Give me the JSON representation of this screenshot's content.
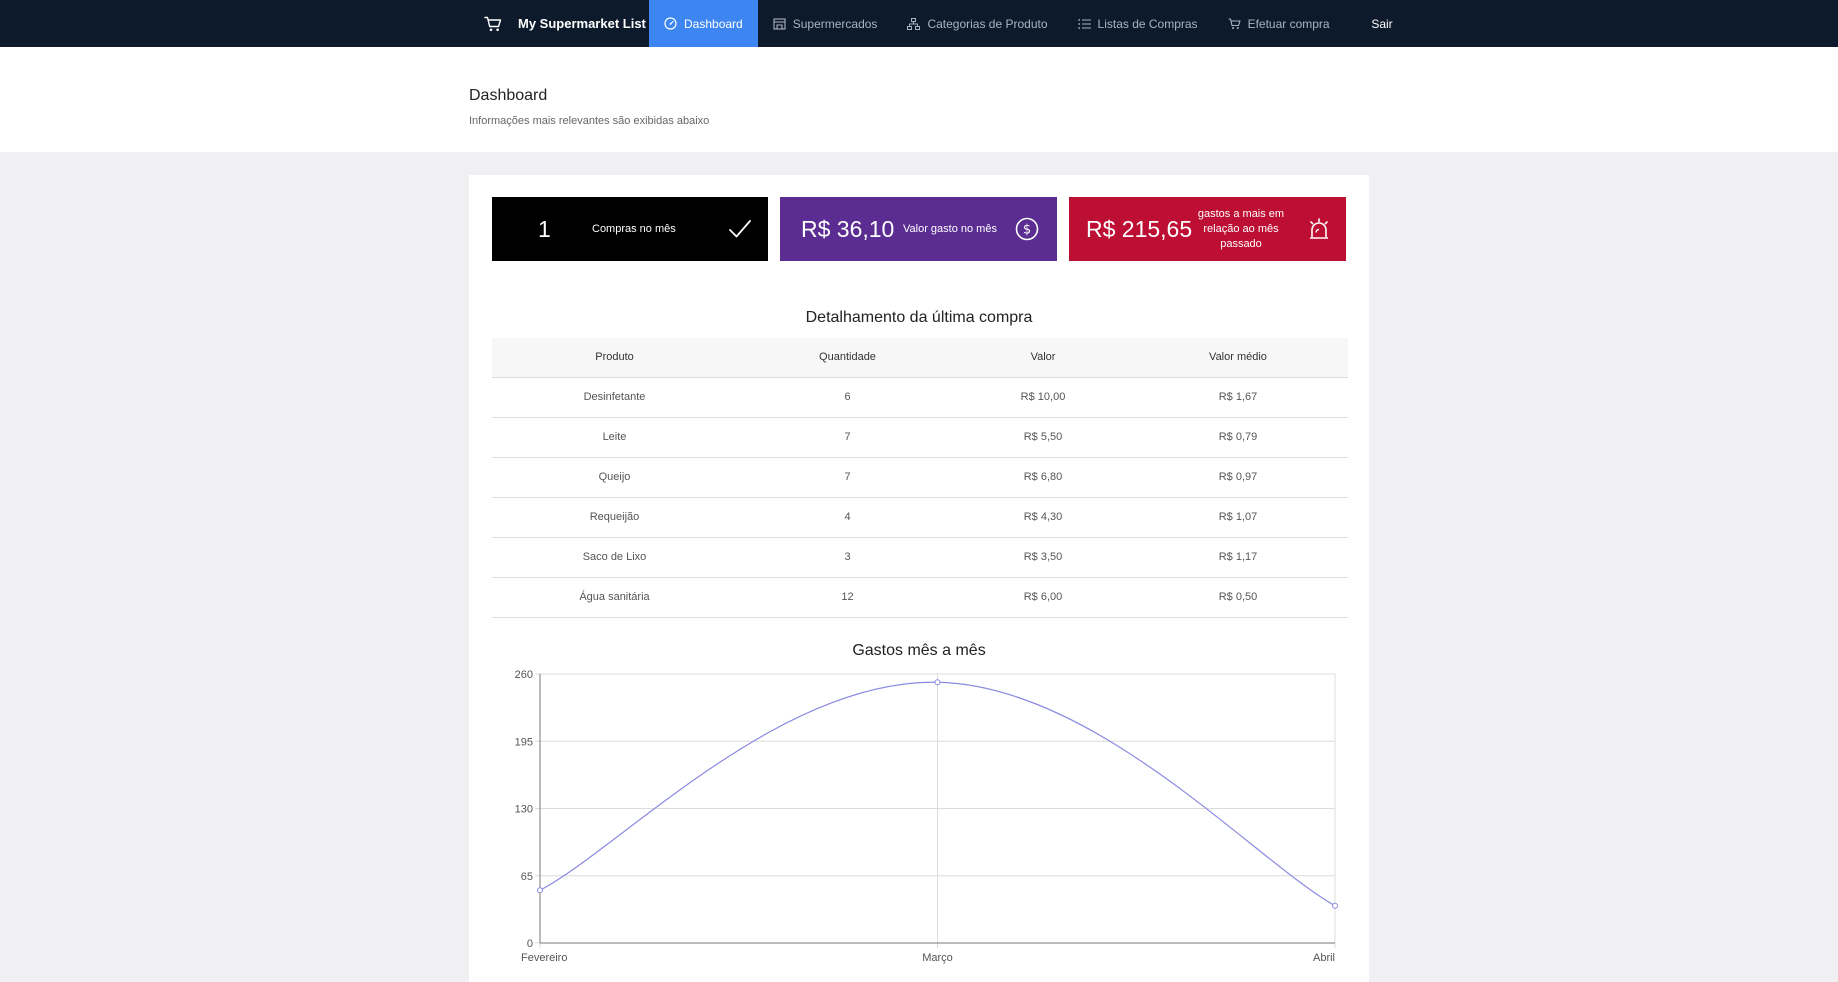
{
  "nav": {
    "brand": "My Supermarket List",
    "items": [
      {
        "label": "Dashboard",
        "icon": "gauge-icon",
        "active": true
      },
      {
        "label": "Supermercados",
        "icon": "store-icon",
        "active": false
      },
      {
        "label": "Categorias de Produto",
        "icon": "sitemap-icon",
        "active": false
      },
      {
        "label": "Listas de Compras",
        "icon": "list-icon",
        "active": false
      },
      {
        "label": "Efetuar compra",
        "icon": "cart-icon",
        "active": false
      }
    ],
    "logout": "Sair"
  },
  "header": {
    "title": "Dashboard",
    "subtitle": "Informações mais relevantes são exibidas abaixo"
  },
  "stats": [
    {
      "value": "1",
      "label": "Compras no mês",
      "icon": "check-icon",
      "color": "#000000"
    },
    {
      "value": "R$ 36,10",
      "label": "Valor gasto no mês",
      "icon": "dollar-circle-icon",
      "color": "#5b2c91"
    },
    {
      "value": "R$ 215,65",
      "label": "gastos a mais em relação ao mês passado",
      "icon": "alarm-icon",
      "color": "#bd0e33"
    }
  ],
  "detail": {
    "title": "Detalhamento da última compra",
    "columns": [
      "Produto",
      "Quantidade",
      "Valor",
      "Valor médio"
    ],
    "rows": [
      [
        "Desinfetante",
        "6",
        "R$ 10,00",
        "R$ 1,67"
      ],
      [
        "Leite",
        "7",
        "R$ 5,50",
        "R$ 0,79"
      ],
      [
        "Queijo",
        "7",
        "R$ 6,80",
        "R$ 0,97"
      ],
      [
        "Requeijão",
        "4",
        "R$ 4,30",
        "R$ 1,07"
      ],
      [
        "Saco de Lixo",
        "3",
        "R$ 3,50",
        "R$ 1,17"
      ],
      [
        "Água sanitária",
        "12",
        "R$ 6,00",
        "R$ 0,50"
      ]
    ]
  },
  "chart_data": {
    "type": "line",
    "title": "Gastos mês a mês",
    "categories": [
      "Fevereiro",
      "Março",
      "Abril"
    ],
    "series": [
      {
        "values": [
          51,
          252,
          36
        ]
      }
    ],
    "ylim": [
      0,
      260
    ],
    "yticks": [
      0,
      65,
      130,
      195,
      260
    ],
    "grid": true,
    "line_color": "#8a8ae0"
  },
  "colors": {
    "nav_bg": "#0d1a2b",
    "nav_active": "#3d86f2",
    "page_bg": "#f0f0f3"
  }
}
